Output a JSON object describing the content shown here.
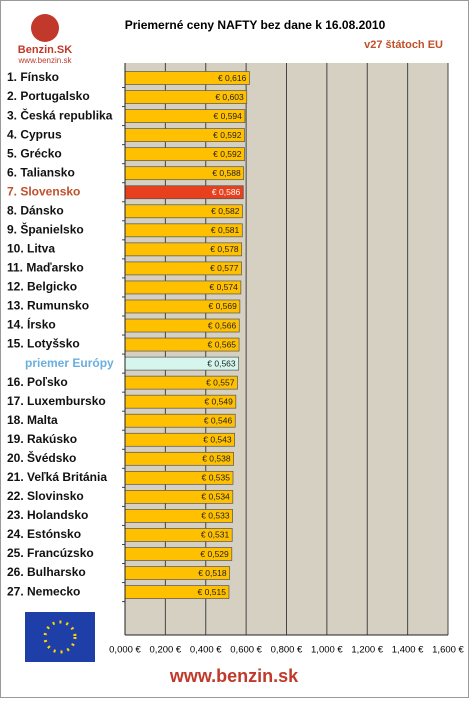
{
  "logo": {
    "name": "Benzin.SK",
    "url": "www.benzin.sk"
  },
  "footer": "www.benzin.sk",
  "chart_data": {
    "type": "bar",
    "orientation": "horizontal",
    "title": "Priemerné ceny NAFTY bez dane k 16.08.2010",
    "subtitle": "v27 štátoch EU",
    "categories": [
      "1. Fínsko",
      "2. Portugalsko",
      "3. Česká republika",
      "4. Cyprus",
      "5. Grécko",
      "6. Taliansko",
      "7. Slovensko",
      "8. Dánsko",
      "9. Španielsko",
      "10. Litva",
      "11. Maďarsko",
      "12. Belgicko",
      "13. Rumunsko",
      "14. Írsko",
      "15. Lotyšsko",
      "priemer Európy",
      "16. Poľsko",
      "17. Luxembursko",
      "18. Malta",
      "19. Rakúsko",
      "20. Švédsko",
      "21. Veľká Británia",
      "22. Slovinsko",
      "23. Holandsko",
      "24. Estónsko",
      "25. Francúzsko",
      "26. Bulharsko",
      "27. Nemecko"
    ],
    "values": [
      0.616,
      0.603,
      0.594,
      0.592,
      0.592,
      0.588,
      0.586,
      0.582,
      0.581,
      0.578,
      0.577,
      0.574,
      0.569,
      0.566,
      0.565,
      0.563,
      0.557,
      0.549,
      0.546,
      0.543,
      0.538,
      0.535,
      0.534,
      0.533,
      0.531,
      0.529,
      0.518,
      0.515
    ],
    "value_labels": [
      "€ 0,616",
      "€ 0,603",
      "€ 0,594",
      "€ 0,592",
      "€ 0,592",
      "€ 0,588",
      "€ 0,586",
      "€ 0,582",
      "€ 0,581",
      "€ 0,578",
      "€ 0,577",
      "€ 0,574",
      "€ 0,569",
      "€ 0,566",
      "€ 0,565",
      "€ 0,563",
      "€ 0,557",
      "€ 0,549",
      "€ 0,546",
      "€ 0,543",
      "€ 0,538",
      "€ 0,535",
      "€ 0,534",
      "€ 0,533",
      "€ 0,531",
      "€ 0,529",
      "€ 0,518",
      "€ 0,515"
    ],
    "color": "#ffc000",
    "highlight": {
      "6": {
        "bar": "#e8401c",
        "label": "#c0502a"
      },
      "15": {
        "bar": "#d6f5ec",
        "label": "#6aaee0"
      }
    },
    "xlim": [
      0,
      1.6
    ],
    "xticks": [
      {
        "value": 0,
        "label": "0,000 €"
      },
      {
        "value": 0.2,
        "label": "0,200 €"
      },
      {
        "value": 0.4,
        "label": "0,400 €"
      },
      {
        "value": 0.6,
        "label": "0,600 €"
      },
      {
        "value": 0.8,
        "label": "0,800 €"
      },
      {
        "value": 1.0,
        "label": "1,000 €"
      },
      {
        "value": 1.2,
        "label": "1,200 €"
      },
      {
        "value": 1.4,
        "label": "1,400 €"
      },
      {
        "value": 1.6,
        "label": "1,600 €"
      }
    ],
    "grid": true
  }
}
